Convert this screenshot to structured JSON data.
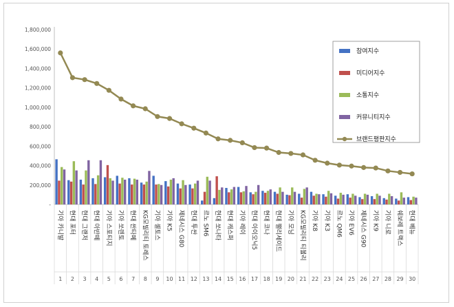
{
  "chart_data": {
    "type": "bar",
    "categories": [
      "기아 카니발",
      "현대 포터",
      "현대 그랜저",
      "현대 아반떼",
      "기아 스포티지",
      "기아 쏘렌토",
      "현대 싼타페",
      "KG모빌리티 토레스",
      "기아 셀토스",
      "기아 K5",
      "제네시스 G80",
      "현대 투싼",
      "르노 SM6",
      "현대 쏘나타",
      "현대 캐스퍼",
      "기아 레이",
      "현대 아이오닉5",
      "현대 코나",
      "현대 팰리세이드",
      "기아 모닝",
      "KG모빌리티 티볼리",
      "기아 K8",
      "기아 K3",
      "르노 QM6",
      "기아 EV6",
      "제네시스 G90",
      "기아 K9",
      "기아 니로",
      "쉐보레 트랙스",
      "현대 베뉴"
    ],
    "ranks": [
      "1",
      "2",
      "3",
      "4",
      "5",
      "6",
      "7",
      "8",
      "9",
      "10",
      "11",
      "12",
      "13",
      "14",
      "15",
      "16",
      "17",
      "18",
      "19",
      "20",
      "21",
      "22",
      "23",
      "24",
      "25",
      "26",
      "27",
      "28",
      "29",
      "30"
    ],
    "series": [
      {
        "name": "참여지수",
        "color": "#4472c4",
        "values": [
          465000,
          250000,
          255000,
          270000,
          280000,
          295000,
          270000,
          225000,
          295000,
          240000,
          215000,
          205000,
          40000,
          65000,
          170000,
          180000,
          125000,
          140000,
          130000,
          100000,
          110000,
          130000,
          105000,
          90000,
          105000,
          75000,
          85000,
          65000,
          60000,
          75000
        ]
      },
      {
        "name": "미디어지수",
        "color": "#c0504d",
        "values": [
          245000,
          235000,
          205000,
          210000,
          405000,
          215000,
          205000,
          205000,
          205000,
          185000,
          165000,
          165000,
          130000,
          290000,
          125000,
          125000,
          105000,
          120000,
          110000,
          95000,
          70000,
          90000,
          80000,
          60000,
          70000,
          55000,
          55000,
          50000,
          40000,
          45000
        ]
      },
      {
        "name": "소통지수",
        "color": "#9bbb59",
        "values": [
          385000,
          445000,
          350000,
          300000,
          270000,
          275000,
          265000,
          235000,
          210000,
          255000,
          250000,
          215000,
          285000,
          150000,
          155000,
          135000,
          130000,
          140000,
          175000,
          175000,
          160000,
          110000,
          140000,
          120000,
          110000,
          110000,
          110000,
          110000,
          125000,
          80000
        ]
      },
      {
        "name": "커뮤니티지수",
        "color": "#8064a2",
        "values": [
          360000,
          350000,
          455000,
          455000,
          245000,
          255000,
          255000,
          345000,
          200000,
          270000,
          200000,
          245000,
          245000,
          175000,
          180000,
          190000,
          200000,
          155000,
          130000,
          130000,
          175000,
          105000,
          115000,
          100000,
          90000,
          100000,
          90000,
          85000,
          70000,
          70000
        ]
      }
    ],
    "line": {
      "name": "브랜드평판지수",
      "color": "#938953",
      "values": [
        1560000,
        1305000,
        1285000,
        1245000,
        1175000,
        1085000,
        1015000,
        985000,
        905000,
        885000,
        830000,
        785000,
        735000,
        675000,
        660000,
        635000,
        585000,
        580000,
        535000,
        525000,
        510000,
        455000,
        425000,
        405000,
        395000,
        380000,
        375000,
        345000,
        330000,
        315000
      ]
    },
    "y_ticks": [
      "-",
      "200,000",
      "400,000",
      "600,000",
      "800,000",
      "1,000,000",
      "1,200,000",
      "1,400,000",
      "1,600,000",
      "1,800,000"
    ],
    "ylim": [
      0,
      1800000
    ],
    "legend_position": "top-right",
    "grid": false
  }
}
